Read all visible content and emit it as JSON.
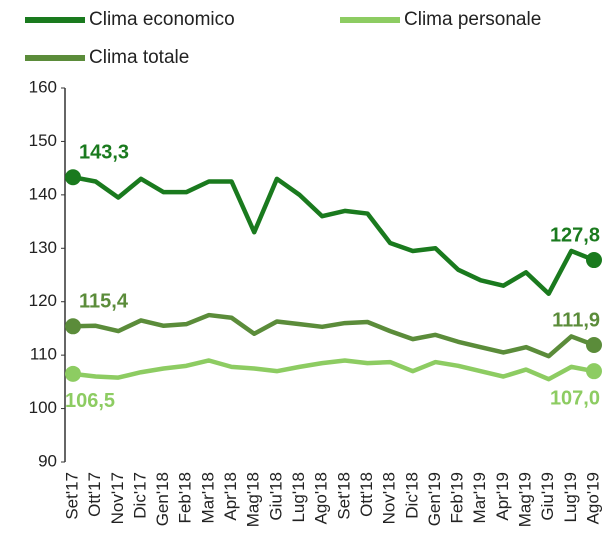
{
  "chart_data": {
    "type": "line",
    "categories": [
      "Set'17",
      "Ott'17",
      "Nov'17",
      "Dic'17",
      "Gen'18",
      "Feb'18",
      "Mar'18",
      "Apr'18",
      "Mag'18",
      "Giu'18",
      "Lug'18",
      "Ago'18",
      "Set'18",
      "Ott'18",
      "Nov'18",
      "Dic'18",
      "Gen'19",
      "Feb'19",
      "Mar'19",
      "Apr'19",
      "Mag'19",
      "Giu'19",
      "Lug'19",
      "Ago'19"
    ],
    "series": [
      {
        "name": "Clima economico",
        "color": "#1a7a1e",
        "values": [
          143.3,
          142.5,
          139.5,
          143,
          140.5,
          140.5,
          142.5,
          142.5,
          133,
          143,
          140,
          136,
          137,
          136.5,
          131,
          129.5,
          130,
          126,
          124,
          123,
          125.5,
          121.5,
          129.5,
          127.8
        ],
        "value_labels": [
          "143,3",
          null,
          null,
          null,
          null,
          null,
          null,
          null,
          null,
          null,
          null,
          null,
          null,
          null,
          null,
          null,
          null,
          null,
          null,
          null,
          null,
          null,
          null,
          "127,8"
        ]
      },
      {
        "name": "Clima personale",
        "color": "#8dcc62",
        "values": [
          106.5,
          106,
          105.8,
          106.8,
          107.5,
          108,
          109,
          107.8,
          107.5,
          107,
          107.8,
          108.5,
          109,
          108.5,
          108.7,
          107,
          108.7,
          108,
          107,
          106,
          107.3,
          105.5,
          107.8,
          107.0
        ],
        "value_labels": [
          "106,5",
          null,
          null,
          null,
          null,
          null,
          null,
          null,
          null,
          null,
          null,
          null,
          null,
          null,
          null,
          null,
          null,
          null,
          null,
          null,
          null,
          null,
          null,
          "107,0"
        ]
      },
      {
        "name": "Clima totale",
        "color": "#5b8c3a",
        "values": [
          115.4,
          115.5,
          114.5,
          116.5,
          115.5,
          115.8,
          117.5,
          117,
          114,
          116.3,
          115.8,
          115.3,
          116,
          116.2,
          114.5,
          113,
          113.8,
          112.5,
          111.5,
          110.5,
          111.5,
          109.8,
          113.5,
          111.9
        ],
        "value_labels": [
          "115,4",
          null,
          null,
          null,
          null,
          null,
          null,
          null,
          null,
          null,
          null,
          null,
          null,
          null,
          null,
          null,
          null,
          null,
          null,
          null,
          null,
          null,
          null,
          "111,9"
        ]
      }
    ],
    "ylim": [
      90,
      160
    ],
    "yticks": [
      90,
      100,
      110,
      120,
      130,
      140,
      150,
      160
    ],
    "legend": "top-left"
  }
}
